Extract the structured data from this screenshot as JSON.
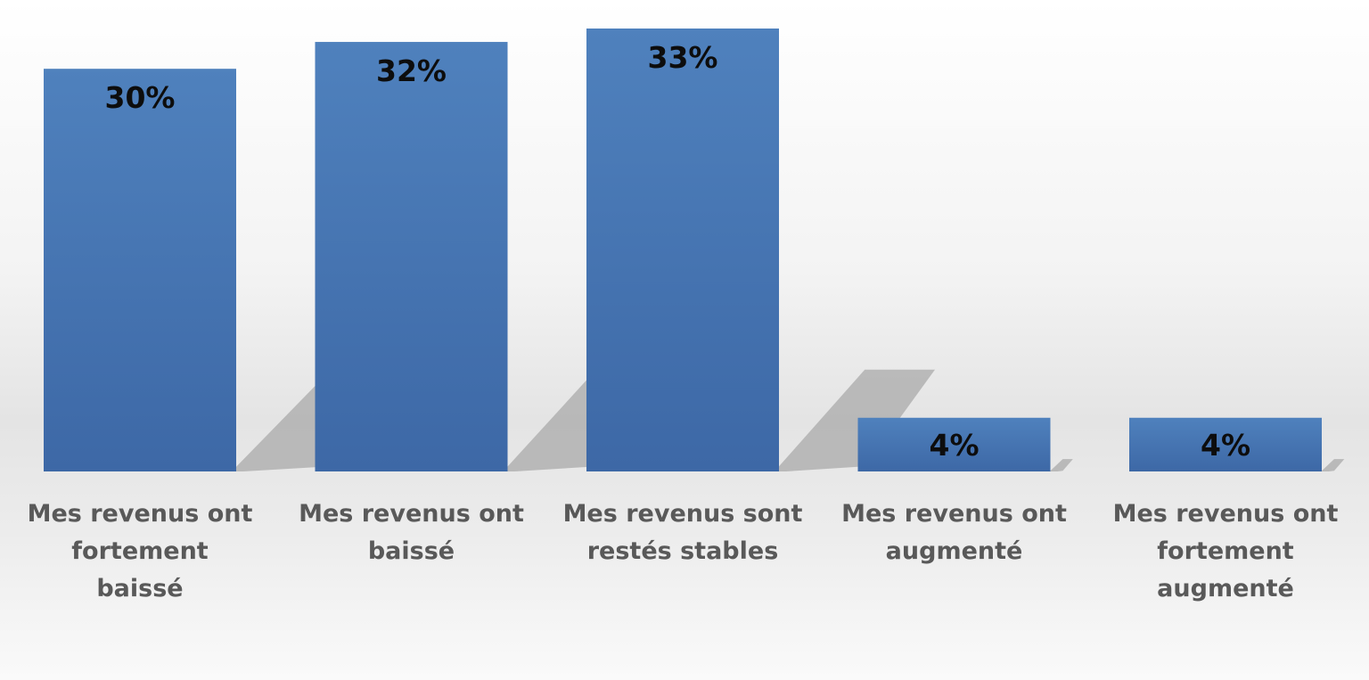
{
  "chart_data": {
    "type": "bar",
    "title": "",
    "xlabel": "",
    "ylabel": "",
    "ylim": [
      0,
      33
    ],
    "grid": false,
    "legend": "none",
    "categories": [
      [
        "Mes revenus ont",
        "fortement",
        "baissé"
      ],
      [
        "Mes revenus ont",
        "baissé"
      ],
      [
        "Mes revenus sont",
        "restés stables"
      ],
      [
        "Mes revenus ont",
        "augmenté"
      ],
      [
        "Mes revenus ont",
        "fortement",
        "augmenté"
      ]
    ],
    "values": [
      30,
      32,
      33,
      4,
      4
    ],
    "data_labels": [
      "30%",
      "32%",
      "33%",
      "4%",
      "4%"
    ],
    "colors": {
      "bar_top": "#4f81bd",
      "bar_bottom": "#3d68a6",
      "shadow": "#a9a9a9",
      "data_label": "#0d0d0d",
      "category_label": "#595959"
    }
  }
}
